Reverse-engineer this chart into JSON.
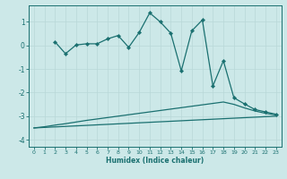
{
  "xlabel": "Humidex (Indice chaleur)",
  "background_color": "#cce8e8",
  "grid_color": "#b8d8d8",
  "line_color": "#1a7070",
  "xlim": [
    -0.5,
    23.5
  ],
  "ylim": [
    -4.3,
    1.7
  ],
  "yticks": [
    -4,
    -3,
    -2,
    -1,
    0,
    1
  ],
  "xticks": [
    0,
    1,
    2,
    3,
    4,
    5,
    6,
    7,
    8,
    9,
    10,
    11,
    12,
    13,
    14,
    15,
    16,
    17,
    18,
    19,
    20,
    21,
    22,
    23
  ],
  "line1_x": [
    0,
    1,
    2,
    3,
    4,
    5,
    6,
    7,
    8,
    9,
    10,
    11,
    12,
    13,
    14,
    15,
    16,
    17,
    18,
    19,
    20,
    21,
    22,
    23
  ],
  "line1_y": [
    -3.5,
    -3.45,
    -3.38,
    -3.32,
    -3.25,
    -3.18,
    -3.12,
    -3.06,
    -3.0,
    -2.94,
    -2.88,
    -2.82,
    -2.76,
    -2.7,
    -2.64,
    -2.58,
    -2.52,
    -2.46,
    -2.4,
    -2.5,
    -2.65,
    -2.78,
    -2.88,
    -2.95
  ],
  "line2_x": [
    0,
    23
  ],
  "line2_y": [
    -3.5,
    -3.0
  ],
  "line3_x": [
    2,
    3,
    4,
    5,
    6,
    7,
    8,
    9,
    10,
    11,
    12,
    13,
    14,
    15,
    16,
    17,
    18,
    19,
    20,
    21,
    22,
    23
  ],
  "line3_y": [
    0.15,
    -0.35,
    0.02,
    0.07,
    0.07,
    0.28,
    0.42,
    -0.08,
    0.55,
    1.38,
    1.0,
    0.52,
    -1.08,
    0.62,
    1.08,
    -1.72,
    -0.65,
    -2.22,
    -2.48,
    -2.72,
    -2.82,
    -2.92
  ]
}
